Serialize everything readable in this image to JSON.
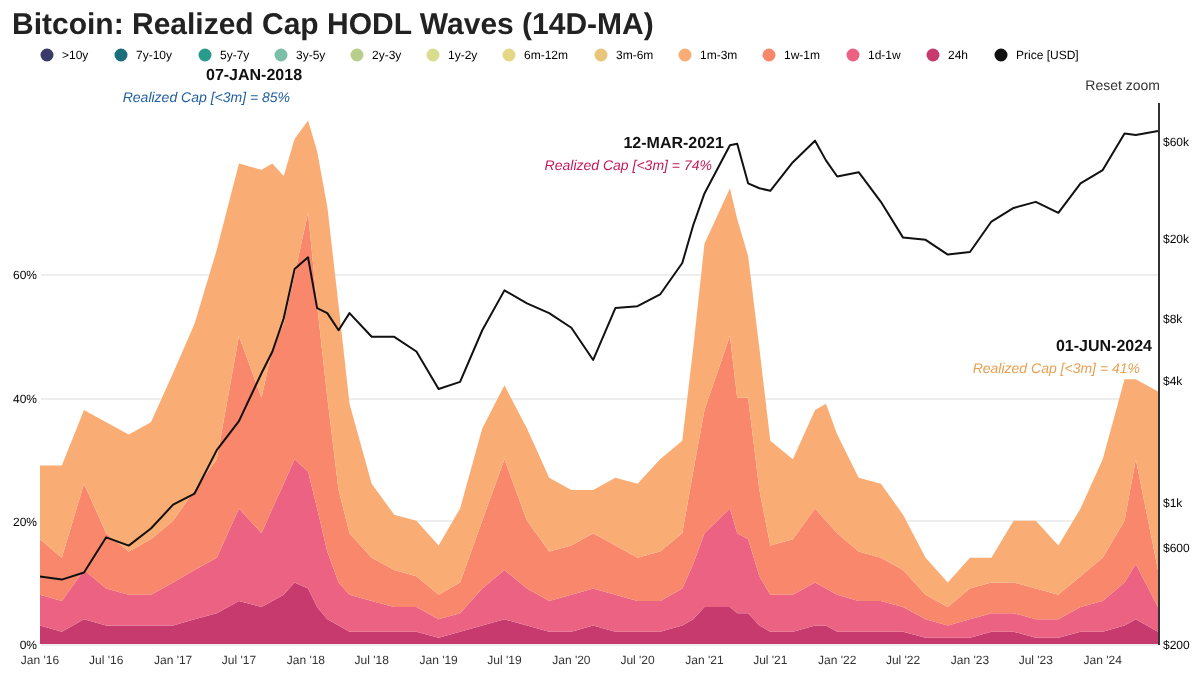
{
  "chart_data": {
    "type": "area",
    "title": "Bitcoin: Realized Cap HODL Waves (14D-MA)",
    "stacked": true,
    "legend": "top",
    "grid": "y",
    "log": "y2",
    "x": [
      "2016-01",
      "2016-03",
      "2016-05",
      "2016-07",
      "2016-09",
      "2016-11",
      "2017-01",
      "2017-03",
      "2017-05",
      "2017-07",
      "2017-09",
      "2017-10",
      "2017-11",
      "2017-12",
      "2018-01-07",
      "2018-02",
      "2018-03",
      "2018-04",
      "2018-05",
      "2018-07",
      "2018-09",
      "2018-11",
      "2019-01",
      "2019-03",
      "2019-05",
      "2019-07",
      "2019-09",
      "2019-11",
      "2020-01",
      "2020-03",
      "2020-05",
      "2020-07",
      "2020-09",
      "2020-11",
      "2020-12",
      "2021-01",
      "2021-03-12",
      "2021-04",
      "2021-05",
      "2021-06",
      "2021-07",
      "2021-09",
      "2021-11",
      "2021-12",
      "2022-01",
      "2022-03",
      "2022-05",
      "2022-07",
      "2022-09",
      "2022-11",
      "2023-01",
      "2023-03",
      "2023-05",
      "2023-07",
      "2023-09",
      "2023-11",
      "2024-01",
      "2024-03",
      "2024-04",
      "2024-06-01"
    ],
    "series": [
      {
        "name": "24h",
        "color": "#c73a6e",
        "values": [
          3,
          2,
          4,
          3,
          3,
          3,
          3,
          4,
          5,
          7,
          6,
          7,
          8,
          10,
          9,
          6,
          4,
          3,
          2,
          2,
          2,
          2,
          1,
          2,
          3,
          4,
          3,
          2,
          2,
          3,
          2,
          2,
          2,
          3,
          4,
          6,
          6,
          5,
          5,
          3,
          2,
          2,
          3,
          3,
          2,
          2,
          2,
          2,
          1,
          1,
          1,
          2,
          2,
          1,
          1,
          2,
          2,
          3,
          4,
          2
        ]
      },
      {
        "name": "1d-1w",
        "color": "#ec6282",
        "values": [
          5,
          5,
          8,
          6,
          5,
          5,
          7,
          8,
          9,
          15,
          12,
          15,
          18,
          20,
          19,
          16,
          11,
          7,
          6,
          5,
          4,
          4,
          3,
          3,
          6,
          8,
          6,
          5,
          6,
          6,
          6,
          5,
          5,
          6,
          9,
          12,
          16,
          13,
          12,
          8,
          6,
          6,
          7,
          6,
          6,
          5,
          5,
          4,
          3,
          2,
          3,
          3,
          3,
          3,
          3,
          4,
          5,
          7,
          9,
          4
        ]
      },
      {
        "name": "1w-1m",
        "color": "#f8876b",
        "values": [
          9,
          7,
          14,
          9,
          7,
          9,
          10,
          13,
          16,
          28,
          22,
          26,
          26,
          30,
          42,
          33,
          25,
          15,
          10,
          7,
          6,
          5,
          4,
          5,
          11,
          18,
          11,
          8,
          8,
          9,
          8,
          7,
          8,
          9,
          15,
          20,
          28,
          22,
          23,
          14,
          8,
          9,
          12,
          11,
          10,
          8,
          7,
          6,
          4,
          3,
          5,
          5,
          5,
          5,
          4,
          5,
          7,
          10,
          17,
          6
        ]
      },
      {
        "name": "1m-3m",
        "color": "#f9ad74",
        "values": [
          12,
          15,
          12,
          18,
          19,
          19,
          24,
          27,
          34,
          28,
          37,
          30,
          24,
          22,
          15,
          25,
          31,
          30,
          21,
          12,
          9,
          9,
          8,
          12,
          15,
          12,
          15,
          12,
          9,
          7,
          11,
          12,
          15,
          15,
          20,
          27,
          24,
          29,
          23,
          23,
          17,
          13,
          16,
          19,
          16,
          12,
          12,
          9,
          6,
          4,
          5,
          4,
          10,
          11,
          8,
          11,
          16,
          23,
          13,
          29
        ]
      },
      {
        "name": "3m-6m",
        "color": "#e8c57a",
        "values": [
          null,
          null,
          null,
          null,
          null,
          null,
          null,
          null,
          null,
          null,
          null,
          null,
          null,
          null,
          null,
          null,
          null,
          null,
          null,
          null,
          null,
          null,
          null,
          null,
          null,
          null,
          null,
          null,
          null,
          null,
          null,
          null,
          null,
          null,
          null,
          null,
          null,
          null,
          null,
          null,
          null,
          null,
          null,
          null,
          null,
          null,
          null,
          null,
          null,
          null,
          null,
          null,
          null,
          null,
          null,
          null,
          null,
          null,
          null,
          null
        ]
      },
      {
        "name": "6m-12m",
        "color": "#e2d886",
        "values": [
          null,
          null,
          null,
          null,
          null,
          null,
          null,
          null,
          null,
          null,
          null,
          null,
          null,
          null,
          null,
          null,
          null,
          null,
          null,
          null,
          null,
          null,
          null,
          null,
          null,
          null,
          null,
          null,
          null,
          null,
          null,
          null,
          null,
          null,
          null,
          null,
          null,
          null,
          null,
          null,
          null,
          null,
          null,
          null,
          null,
          null,
          null,
          null,
          null,
          null,
          null,
          null,
          null,
          null,
          null,
          null,
          null,
          null,
          null,
          null
        ]
      },
      {
        "name": "1y-2y",
        "color": "#d8dd8f",
        "values": [
          null,
          null,
          null,
          null,
          null,
          null,
          null,
          null,
          null,
          null,
          null,
          null,
          null,
          null,
          null,
          null,
          null,
          null,
          null,
          null,
          null,
          null,
          null,
          null,
          null,
          null,
          null,
          null,
          null,
          null,
          null,
          null,
          null,
          null,
          null,
          null,
          null,
          null,
          null,
          null,
          null,
          null,
          null,
          null,
          null,
          null,
          null,
          null,
          null,
          null,
          null,
          null,
          null,
          null,
          null,
          null,
          null,
          null,
          null,
          null
        ]
      },
      {
        "name": "2y-3y",
        "color": "#b7cf8a",
        "values": [
          null,
          null,
          null,
          null,
          null,
          null,
          null,
          null,
          null,
          null,
          null,
          null,
          null,
          null,
          null,
          null,
          null,
          null,
          null,
          null,
          null,
          null,
          null,
          null,
          null,
          null,
          null,
          null,
          null,
          null,
          null,
          null,
          null,
          null,
          null,
          null,
          null,
          null,
          null,
          null,
          null,
          null,
          null,
          null,
          null,
          null,
          null,
          null,
          null,
          null,
          null,
          null,
          null,
          null,
          null,
          null,
          null,
          null,
          null,
          null
        ]
      },
      {
        "name": "3y-5y",
        "color": "#7bbfa8",
        "values": [
          null,
          null,
          null,
          null,
          null,
          null,
          null,
          null,
          null,
          null,
          null,
          null,
          null,
          null,
          null,
          null,
          null,
          null,
          null,
          null,
          null,
          null,
          null,
          null,
          null,
          null,
          null,
          null,
          null,
          null,
          null,
          null,
          null,
          null,
          null,
          null,
          null,
          null,
          null,
          null,
          null,
          null,
          null,
          null,
          null,
          null,
          null,
          null,
          null,
          null,
          null,
          null,
          null,
          null,
          null,
          null,
          null,
          null,
          null,
          null
        ]
      },
      {
        "name": "5y-7y",
        "color": "#2a9a8a",
        "values": [
          null,
          null,
          null,
          null,
          null,
          null,
          null,
          null,
          null,
          null,
          null,
          null,
          null,
          null,
          null,
          null,
          null,
          null,
          null,
          null,
          null,
          null,
          null,
          null,
          null,
          null,
          null,
          null,
          null,
          null,
          null,
          null,
          null,
          null,
          null,
          null,
          null,
          null,
          null,
          null,
          null,
          null,
          null,
          null,
          null,
          null,
          null,
          null,
          null,
          null,
          null,
          null,
          null,
          null,
          null,
          null,
          null,
          null,
          null,
          null
        ]
      },
      {
        "name": "7y-10y",
        "color": "#1b6f7a",
        "values": [
          null,
          null,
          null,
          null,
          null,
          null,
          null,
          null,
          null,
          null,
          null,
          null,
          null,
          null,
          null,
          null,
          null,
          null,
          null,
          null,
          null,
          null,
          null,
          null,
          null,
          null,
          null,
          null,
          null,
          null,
          null,
          null,
          null,
          null,
          null,
          null,
          null,
          null,
          null,
          null,
          null,
          null,
          null,
          null,
          null,
          null,
          null,
          null,
          null,
          null,
          null,
          null,
          null,
          null,
          null,
          null,
          null,
          null,
          null,
          null
        ]
      },
      {
        "name": ">10y",
        "color": "#3b3b6b",
        "values": [
          null,
          null,
          null,
          null,
          null,
          null,
          null,
          null,
          null,
          null,
          null,
          null,
          null,
          null,
          null,
          null,
          null,
          null,
          null,
          null,
          null,
          null,
          null,
          null,
          null,
          null,
          null,
          null,
          null,
          null,
          null,
          null,
          null,
          null,
          null,
          null,
          null,
          null,
          null,
          null,
          null,
          null,
          null,
          null,
          null,
          null,
          null,
          null,
          null,
          null,
          null,
          null,
          null,
          null,
          null,
          null,
          null,
          null,
          null,
          null
        ]
      },
      {
        "name": "Price [USD]",
        "color": "#111111",
        "type": "line",
        "axis": "y2",
        "values": [
          430,
          415,
          450,
          670,
          610,
          740,
          970,
          1100,
          1800,
          2500,
          4300,
          5500,
          8000,
          14000,
          16000,
          9000,
          8500,
          7000,
          8500,
          6500,
          6500,
          5500,
          3600,
          3900,
          7000,
          11000,
          9500,
          8500,
          7200,
          5000,
          9000,
          9200,
          10500,
          15000,
          23000,
          33000,
          57000,
          58000,
          37000,
          35000,
          34000,
          47000,
          60000,
          48000,
          40000,
          42000,
          30000,
          20000,
          19500,
          16500,
          17000,
          24000,
          28000,
          30000,
          26500,
          37000,
          43000,
          65000,
          64000,
          67000
        ]
      }
    ],
    "xlim": [
      "2016-01",
      "2024-06-01"
    ],
    "xticks": [
      {
        "value": "2016-01",
        "label": "Jan '16"
      },
      {
        "value": "2016-07",
        "label": "Jul '16"
      },
      {
        "value": "2017-01",
        "label": "Jan '17"
      },
      {
        "value": "2017-07",
        "label": "Jul '17"
      },
      {
        "value": "2018-01",
        "label": "Jan '18"
      },
      {
        "value": "2018-07",
        "label": "Jul '18"
      },
      {
        "value": "2019-01",
        "label": "Jan '19"
      },
      {
        "value": "2019-07",
        "label": "Jul '19"
      },
      {
        "value": "2020-01",
        "label": "Jan '20"
      },
      {
        "value": "2020-07",
        "label": "Jul '20"
      },
      {
        "value": "2021-01",
        "label": "Jan '21"
      },
      {
        "value": "2021-07",
        "label": "Jul '21"
      },
      {
        "value": "2022-01",
        "label": "Jan '22"
      },
      {
        "value": "2022-07",
        "label": "Jul '22"
      },
      {
        "value": "2023-01",
        "label": "Jan '23"
      },
      {
        "value": "2023-07",
        "label": "Jul '23"
      },
      {
        "value": "2024-01",
        "label": "Jan '24"
      }
    ],
    "ylim": [
      0,
      88
    ],
    "yticks": [
      {
        "value": 0,
        "label": "0%"
      },
      {
        "value": 20,
        "label": "20%"
      },
      {
        "value": 40,
        "label": "40%"
      },
      {
        "value": 60,
        "label": "60%"
      }
    ],
    "y2lim": [
      200,
      93000
    ],
    "y2ticks": [
      {
        "value": 200,
        "label": "$200"
      },
      {
        "value": 600,
        "label": "$600"
      },
      {
        "value": 1000,
        "label": "$1k"
      },
      {
        "value": 4000,
        "label": "$4k"
      },
      {
        "value": 8000,
        "label": "$8k"
      },
      {
        "value": 20000,
        "label": "$20k"
      },
      {
        "value": 60000,
        "label": "$60k"
      }
    ],
    "annotations": [
      {
        "text": "07-JAN-2018",
        "x": "2018-01-07",
        "y": 85
      },
      {
        "text": "Realized Cap [<3m] = 85%",
        "x": "2018-01-07",
        "y": 85
      },
      {
        "text": "12-MAR-2021",
        "x": "2021-03-12",
        "y": 74
      },
      {
        "text": "Realized Cap [<3m] = 74%",
        "x": "2021-03-12",
        "y": 74
      },
      {
        "text": "01-JUN-2024",
        "x": "2024-06-01",
        "y": 41
      },
      {
        "text": "Realized Cap [<3m] = 41%",
        "x": "2024-06-01",
        "y": 41
      },
      "Reset zoom"
    ]
  }
}
